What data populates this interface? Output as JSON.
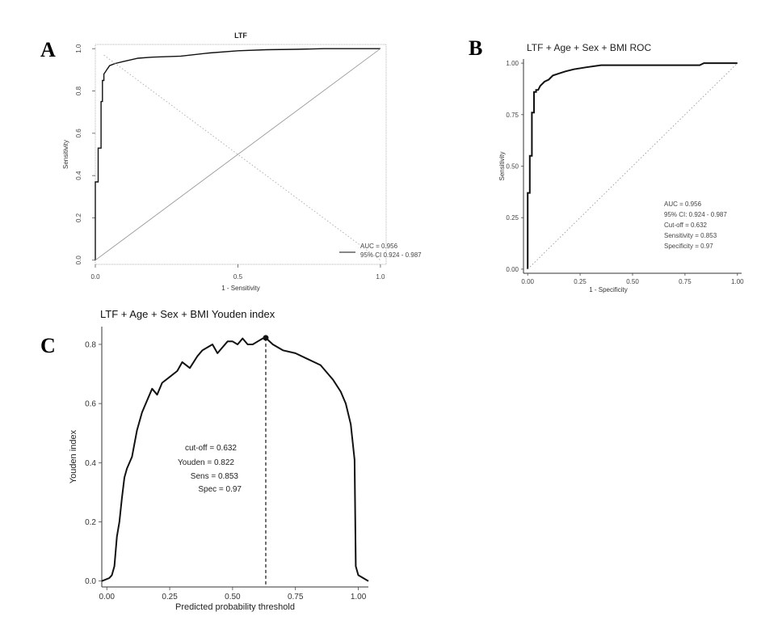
{
  "panels": {
    "a": {
      "letter": "A"
    },
    "b": {
      "letter": "B"
    },
    "c": {
      "letter": "C"
    }
  },
  "chart_data": [
    {
      "type": "line",
      "title": "LTF",
      "xlabel": "1 - Sensitivity",
      "ylabel": "Sensitivity",
      "xlim": [
        1.0,
        -0.02
      ],
      "ylim": [
        -0.02,
        1.02
      ],
      "x_ticks": [
        "0.0",
        "0.5",
        "1.0"
      ],
      "y_ticks": [
        "0.0",
        "0.2",
        "0.4",
        "0.6",
        "0.8",
        "1.0"
      ],
      "x_tick_values": [
        1.0,
        0.5,
        0.0
      ],
      "y_tick_values": [
        0.0,
        0.2,
        0.4,
        0.6,
        0.8,
        1.0
      ],
      "series": [
        {
          "role": "roc",
          "color": "#111111",
          "x": [
            1.0,
            1.0,
            0.99,
            0.99,
            0.98,
            0.98,
            0.975,
            0.975,
            0.97,
            0.97,
            0.965,
            0.96,
            0.955,
            0.95,
            0.94,
            0.93,
            0.9,
            0.85,
            0.8,
            0.7,
            0.6,
            0.5,
            0.4,
            0.3,
            0.2,
            0.0
          ],
          "y": [
            0.0,
            0.37,
            0.37,
            0.53,
            0.53,
            0.75,
            0.75,
            0.85,
            0.85,
            0.88,
            0.89,
            0.9,
            0.91,
            0.92,
            0.925,
            0.93,
            0.94,
            0.955,
            0.96,
            0.965,
            0.98,
            0.99,
            0.995,
            0.997,
            1.0,
            1.0
          ]
        },
        {
          "role": "reference",
          "color": "#999999",
          "x": [
            1.0,
            0.0
          ],
          "y": [
            0.0,
            1.0
          ]
        },
        {
          "role": "crossing",
          "color": "#aaaaaa",
          "dashed": true,
          "x": [
            0.97,
            0.0
          ],
          "y": [
            0.97,
            0.0
          ]
        }
      ],
      "legend": {
        "position": "bottom-right",
        "entries": [
          "AUC = 0.956",
          "95% CI 0.924 - 0.987"
        ]
      }
    },
    {
      "type": "line",
      "title": "LTF + Age + Sex + BMI ROC",
      "xlabel": "1 - Specificity",
      "ylabel": "Sensitivity",
      "xlim": [
        -0.02,
        1.02
      ],
      "ylim": [
        -0.02,
        1.02
      ],
      "x_ticks": [
        "0.00",
        "0.25",
        "0.50",
        "0.75",
        "1.00"
      ],
      "y_ticks": [
        "0.00",
        "0.25",
        "0.50",
        "0.75",
        "1.00"
      ],
      "x_tick_values": [
        0.0,
        0.25,
        0.5,
        0.75,
        1.0
      ],
      "y_tick_values": [
        0.0,
        0.25,
        0.5,
        0.75,
        1.0
      ],
      "series": [
        {
          "role": "roc",
          "color": "#111111",
          "x": [
            0.0,
            0.0,
            0.01,
            0.01,
            0.02,
            0.02,
            0.03,
            0.03,
            0.04,
            0.04,
            0.05,
            0.06,
            0.07,
            0.08,
            0.1,
            0.12,
            0.15,
            0.18,
            0.22,
            0.28,
            0.35,
            0.5,
            0.65,
            0.82,
            0.84,
            1.0
          ],
          "y": [
            0.0,
            0.37,
            0.37,
            0.55,
            0.55,
            0.76,
            0.76,
            0.86,
            0.86,
            0.87,
            0.87,
            0.89,
            0.9,
            0.91,
            0.92,
            0.94,
            0.95,
            0.96,
            0.97,
            0.98,
            0.99,
            0.99,
            0.99,
            0.99,
            1.0,
            1.0
          ]
        },
        {
          "role": "reference",
          "color": "#999999",
          "dashed": true,
          "x": [
            0.0,
            1.0
          ],
          "y": [
            0.0,
            1.0
          ]
        }
      ],
      "annotations": [
        "AUC = 0.956",
        "95% CI: 0.924 - 0.987",
        "Cut-off = 0.632",
        "Sensitivity = 0.853",
        "Specificity = 0.97"
      ]
    },
    {
      "type": "line",
      "title": "LTF + Age + Sex + BMI Youden index",
      "xlabel": "Predicted probability threshold",
      "ylabel": "Youden index",
      "xlim": [
        -0.02,
        1.04
      ],
      "ylim": [
        -0.02,
        0.86
      ],
      "x_ticks": [
        "0.00",
        "0.25",
        "0.50",
        "0.75",
        "1.00"
      ],
      "y_ticks": [
        "0.0",
        "0.2",
        "0.4",
        "0.6",
        "0.8"
      ],
      "x_tick_values": [
        0.0,
        0.25,
        0.5,
        0.75,
        1.0
      ],
      "y_tick_values": [
        0.0,
        0.2,
        0.4,
        0.6,
        0.8
      ],
      "series": [
        {
          "role": "youden",
          "color": "#111111",
          "x": [
            -0.02,
            0.01,
            0.02,
            0.03,
            0.04,
            0.05,
            0.06,
            0.07,
            0.08,
            0.1,
            0.12,
            0.14,
            0.16,
            0.18,
            0.2,
            0.22,
            0.25,
            0.28,
            0.3,
            0.33,
            0.36,
            0.38,
            0.4,
            0.42,
            0.44,
            0.46,
            0.48,
            0.5,
            0.52,
            0.54,
            0.56,
            0.58,
            0.6,
            0.62,
            0.632,
            0.66,
            0.7,
            0.75,
            0.8,
            0.85,
            0.9,
            0.93,
            0.95,
            0.97,
            0.985,
            0.99,
            1.0,
            1.04
          ],
          "y": [
            0.0,
            0.01,
            0.02,
            0.05,
            0.15,
            0.2,
            0.28,
            0.35,
            0.38,
            0.42,
            0.51,
            0.57,
            0.61,
            0.65,
            0.63,
            0.67,
            0.69,
            0.71,
            0.74,
            0.72,
            0.76,
            0.78,
            0.79,
            0.8,
            0.77,
            0.79,
            0.81,
            0.81,
            0.8,
            0.82,
            0.8,
            0.8,
            0.81,
            0.82,
            0.822,
            0.8,
            0.78,
            0.77,
            0.75,
            0.73,
            0.68,
            0.64,
            0.6,
            0.53,
            0.41,
            0.05,
            0.02,
            0.0
          ]
        }
      ],
      "optimal_point": {
        "x": 0.632,
        "y": 0.822
      },
      "annotations": [
        "cut-off = 0.632",
        "Youden = 0.822",
        "Sens = 0.853",
        "Spec = 0.97"
      ]
    }
  ]
}
